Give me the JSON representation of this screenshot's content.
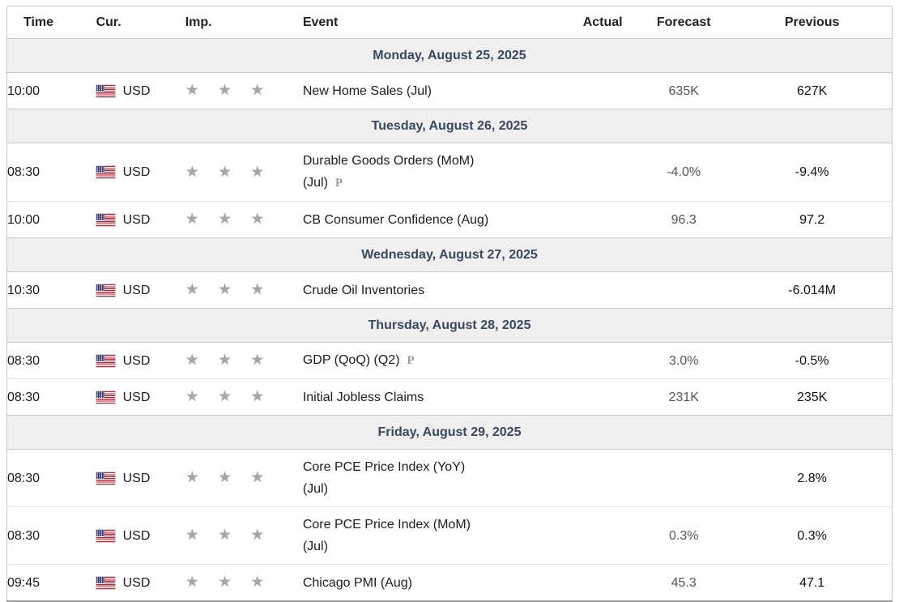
{
  "colors": {
    "day_band_bg": "#efefef",
    "day_band_text": "#39485c",
    "star": "#a6a6a6",
    "forecast_text": "#555555",
    "previous_text": "#111111",
    "row_border": "#e3e3e3",
    "outer_border": "#c6c6c6",
    "flag_red": "#b22234",
    "flag_blue": "#3c3b6e"
  },
  "icons": {
    "star_glyph": "★",
    "preliminary_glyph": "P",
    "flag_name": "us-flag-icon"
  },
  "table": {
    "headers": {
      "time": "Time",
      "currency": "Cur.",
      "importance": "Imp.",
      "event": "Event",
      "actual": "Actual",
      "forecast": "Forecast",
      "previous": "Previous"
    },
    "sections": [
      {
        "day": "Monday, August 25, 2025",
        "rows": [
          {
            "time": "10:00",
            "currency": "USD",
            "importance": 3,
            "event_lines": [
              "New Home Sales (Jul)"
            ],
            "preliminary": false,
            "actual": "",
            "forecast": "635K",
            "previous": "627K"
          }
        ]
      },
      {
        "day": "Tuesday, August 26, 2025",
        "rows": [
          {
            "time": "08:30",
            "currency": "USD",
            "importance": 3,
            "event_lines": [
              "Durable Goods Orders (MoM)",
              "(Jul)"
            ],
            "preliminary": true,
            "actual": "",
            "forecast": "-4.0%",
            "previous": "-9.4%"
          },
          {
            "time": "10:00",
            "currency": "USD",
            "importance": 3,
            "event_lines": [
              "CB Consumer Confidence (Aug)"
            ],
            "preliminary": false,
            "actual": "",
            "forecast": "96.3",
            "previous": "97.2"
          }
        ]
      },
      {
        "day": "Wednesday, August 27, 2025",
        "rows": [
          {
            "time": "10:30",
            "currency": "USD",
            "importance": 3,
            "event_lines": [
              "Crude Oil Inventories"
            ],
            "preliminary": false,
            "actual": "",
            "forecast": "",
            "previous": "-6.014M"
          }
        ]
      },
      {
        "day": "Thursday, August 28, 2025",
        "rows": [
          {
            "time": "08:30",
            "currency": "USD",
            "importance": 3,
            "event_lines": [
              "GDP (QoQ) (Q2)"
            ],
            "preliminary": true,
            "actual": "",
            "forecast": "3.0%",
            "previous": "-0.5%"
          },
          {
            "time": "08:30",
            "currency": "USD",
            "importance": 3,
            "event_lines": [
              "Initial Jobless Claims"
            ],
            "preliminary": false,
            "actual": "",
            "forecast": "231K",
            "previous": "235K"
          }
        ]
      },
      {
        "day": "Friday, August 29, 2025",
        "rows": [
          {
            "time": "08:30",
            "currency": "USD",
            "importance": 3,
            "event_lines": [
              "Core PCE Price Index (YoY)",
              "(Jul)"
            ],
            "preliminary": false,
            "actual": "",
            "forecast": "",
            "previous": "2.8%"
          },
          {
            "time": "08:30",
            "currency": "USD",
            "importance": 3,
            "event_lines": [
              "Core PCE Price Index (MoM)",
              "(Jul)"
            ],
            "preliminary": false,
            "actual": "",
            "forecast": "0.3%",
            "previous": "0.3%"
          },
          {
            "time": "09:45",
            "currency": "USD",
            "importance": 3,
            "event_lines": [
              "Chicago PMI (Aug)"
            ],
            "preliminary": false,
            "actual": "",
            "forecast": "45.3",
            "previous": "47.1"
          }
        ]
      }
    ]
  }
}
